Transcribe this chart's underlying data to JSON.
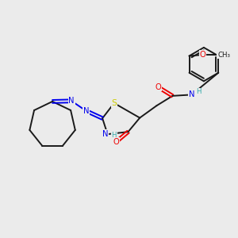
{
  "background_color": "#ebebeb",
  "bond_color": "#1a1a1a",
  "atom_colors": {
    "N": "#0000ee",
    "O": "#ee0000",
    "S": "#cccc00",
    "H": "#33aaaa",
    "C": "#1a1a1a"
  },
  "figsize": [
    3.0,
    3.0
  ],
  "dpi": 100
}
